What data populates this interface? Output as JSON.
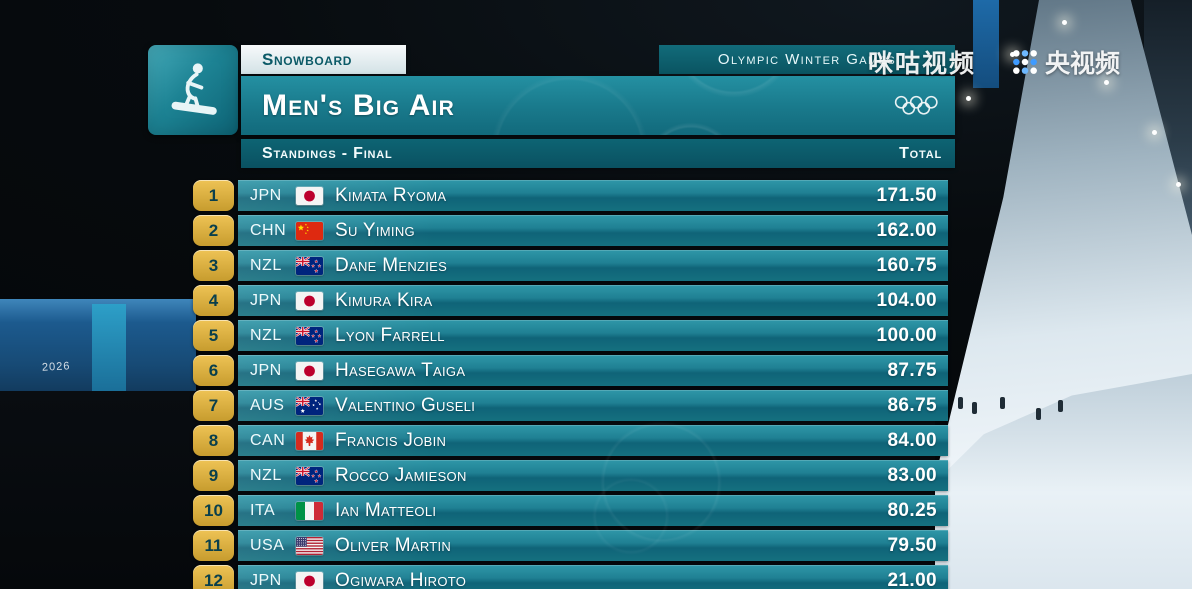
{
  "broadcast": {
    "watermark_migu": "咪咕视频",
    "watermark_cctv": "央视频"
  },
  "background": {
    "banner_text": "2026"
  },
  "scoreboard": {
    "sport": "Snowboard",
    "competition": "Olympic Winter Games",
    "event_title": "Men's Big Air",
    "subtitle": "Standings - Final",
    "total_label": "Total",
    "rows": [
      {
        "rank": "1",
        "noc": "JPN",
        "name": "Kimata Ryoma",
        "score": "171.50"
      },
      {
        "rank": "2",
        "noc": "CHN",
        "name": "Su Yiming",
        "score": "162.00"
      },
      {
        "rank": "3",
        "noc": "NZL",
        "name": "Dane Menzies",
        "score": "160.75"
      },
      {
        "rank": "4",
        "noc": "JPN",
        "name": "Kimura Kira",
        "score": "104.00"
      },
      {
        "rank": "5",
        "noc": "NZL",
        "name": "Lyon Farrell",
        "score": "100.00"
      },
      {
        "rank": "6",
        "noc": "JPN",
        "name": "Hasegawa Taiga",
        "score": "87.75"
      },
      {
        "rank": "7",
        "noc": "AUS",
        "name": "Valentino Guseli",
        "score": "86.75"
      },
      {
        "rank": "8",
        "noc": "CAN",
        "name": "Francis Jobin",
        "score": "84.00"
      },
      {
        "rank": "9",
        "noc": "NZL",
        "name": "Rocco Jamieson",
        "score": "83.00"
      },
      {
        "rank": "10",
        "noc": "ITA",
        "name": "Ian Matteoli",
        "score": "80.25"
      },
      {
        "rank": "11",
        "noc": "USA",
        "name": "Oliver Martin",
        "score": "79.50"
      },
      {
        "rank": "12",
        "noc": "JPN",
        "name": "Ogiwara Hiroto",
        "score": "21.00"
      }
    ]
  },
  "colors": {
    "teal": "#1f8496",
    "teal-dark": "#0c5d6e",
    "gold": "#eec355",
    "gold-dark": "#c79c2e",
    "rank-text": "#093f4c",
    "tab-text": "#0b5a67"
  }
}
